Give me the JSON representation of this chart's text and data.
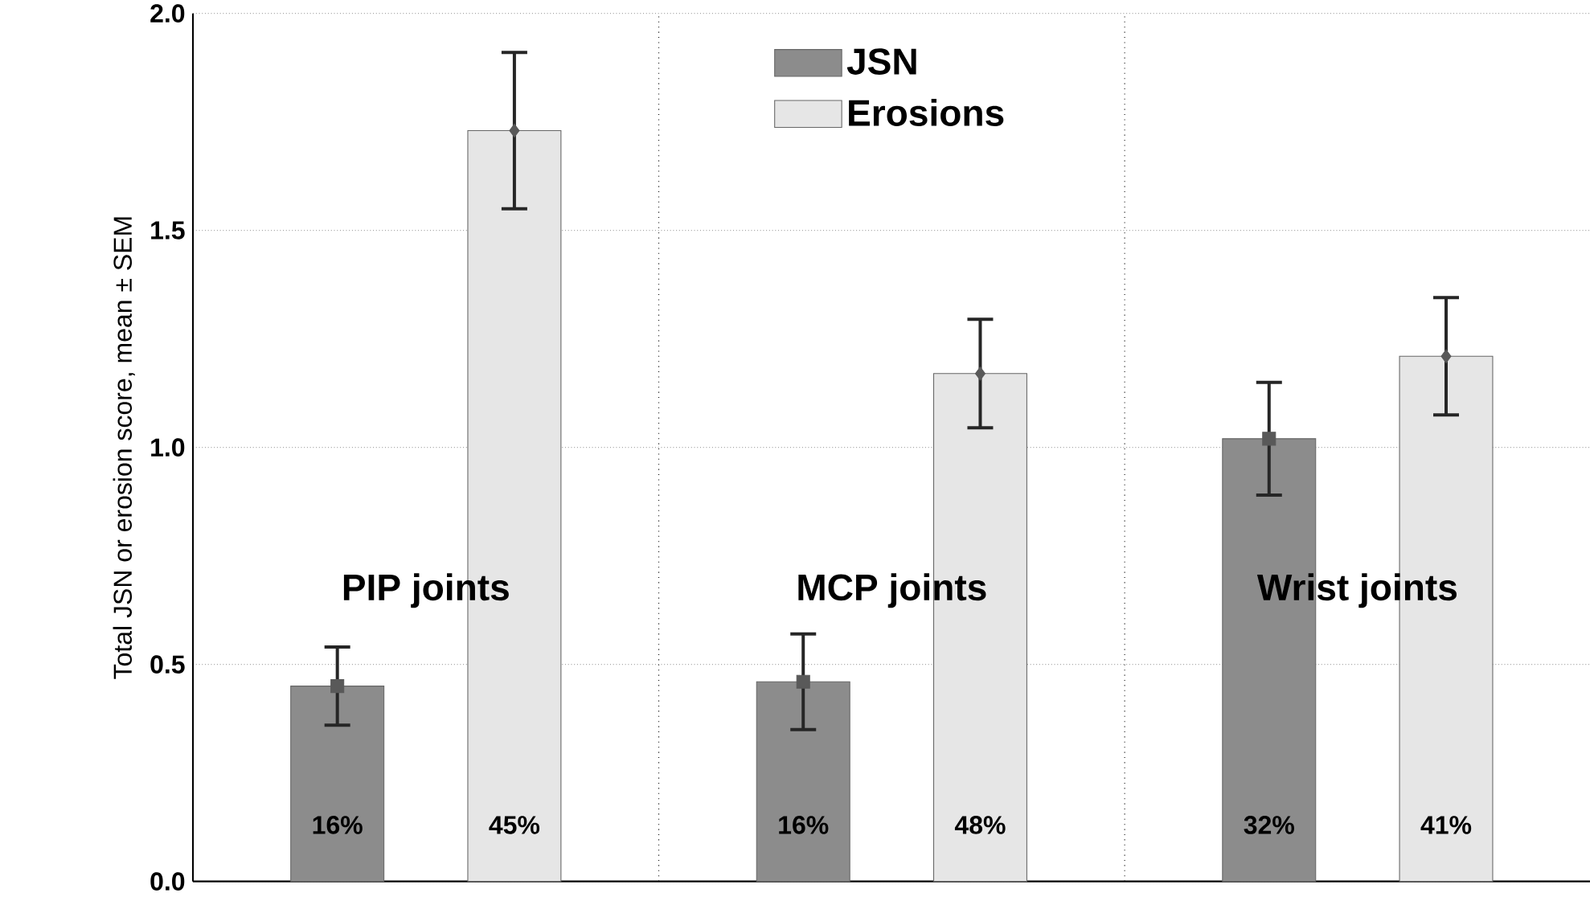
{
  "chart_data": {
    "type": "bar",
    "ylabel": "Total JSN or erosion score, mean ± SEM",
    "categories": [
      "PIP joints",
      "MCP joints",
      "Wrist joints"
    ],
    "series": [
      {
        "name": "JSN",
        "color": "#8c8c8c",
        "values": [
          0.45,
          0.46,
          1.02
        ],
        "errors": [
          0.09,
          0.11,
          0.13
        ]
      },
      {
        "name": "Erosions",
        "color": "#e6e6e6",
        "values": [
          1.73,
          1.17,
          1.21
        ],
        "errors": [
          0.18,
          0.125,
          0.135
        ]
      },
      {
        "type": "scatter",
        "color": "#595959",
        "marker": "square",
        "x": [
          "PIP joints",
          "MCP joints",
          "Wrist joints"
        ],
        "values": [
          0.45,
          0.46,
          1.02
        ]
      },
      {
        "type": "scatter",
        "color": "#595959",
        "marker": "diamond",
        "x": [
          "PIP joints",
          "MCP joints",
          "Wrist joints"
        ],
        "values": [
          1.73,
          1.17,
          1.21
        ]
      }
    ],
    "annotations": [
      "16%",
      "45%",
      "16%",
      "48%",
      "32%",
      "41%"
    ],
    "ylim": [
      0,
      2
    ],
    "yticks": [
      {
        "value": 0,
        "label": "0.0"
      },
      {
        "value": 0.5,
        "label": "0.5"
      },
      {
        "value": 1,
        "label": "1.0"
      },
      {
        "value": 1.5,
        "label": "1.5"
      },
      {
        "value": 2,
        "label": "2.0"
      }
    ],
    "grid": "y",
    "legend": "top"
  }
}
